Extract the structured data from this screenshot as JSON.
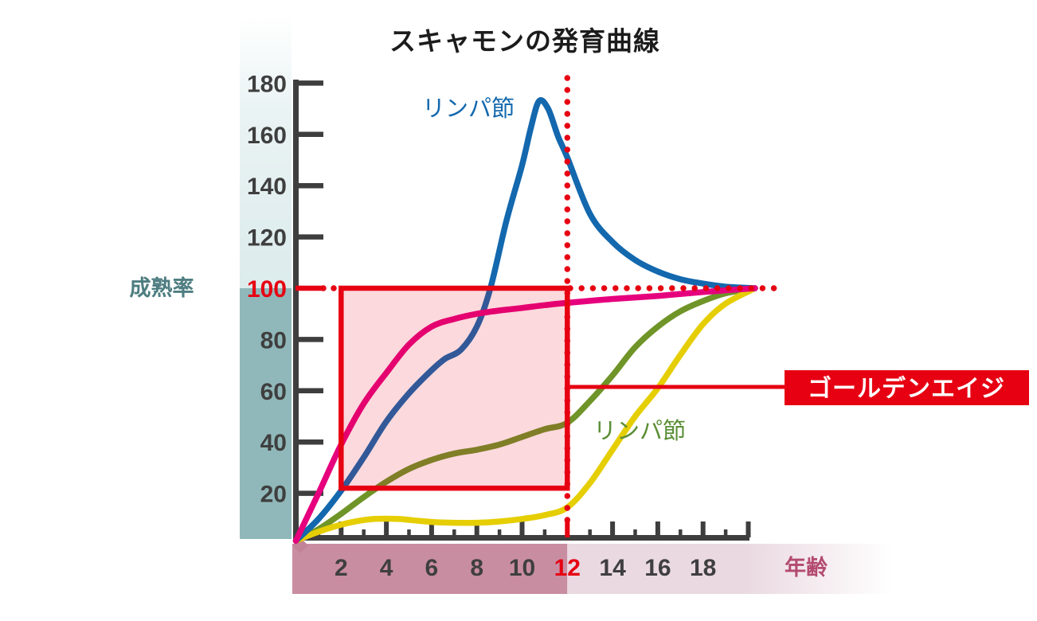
{
  "title": "スキャモンの発育曲線",
  "y_axis": {
    "label": "成熟率",
    "tick_values": [
      180,
      160,
      140,
      120,
      100,
      80,
      60,
      40,
      20
    ],
    "highlight_value": 100,
    "range": [
      0,
      180
    ]
  },
  "x_axis": {
    "label": "年齢",
    "labeled_ticks": [
      2,
      4,
      6,
      8,
      10,
      12,
      14,
      16,
      18
    ],
    "major_ticks": [
      2,
      4,
      6,
      8,
      10,
      12,
      14,
      16,
      18,
      20
    ],
    "minor_ticks": [
      1,
      3,
      5,
      7,
      9,
      11,
      13,
      15,
      17,
      19
    ],
    "highlight_value": 12,
    "range": [
      0,
      20
    ]
  },
  "annotations": {
    "golden_age": {
      "label": "ゴールデンエイジ",
      "y_value": 61.5,
      "from_x": 12
    },
    "highlight_box": {
      "x_from": 2,
      "x_to": 12,
      "y_from": 22,
      "y_to": 100
    },
    "ref_lines": {
      "horizontal_y": 100,
      "vertical_x": 12
    },
    "curve_labels": [
      {
        "text": "リンパ節",
        "series": "blue"
      },
      {
        "text": "リンパ節",
        "series": "olive"
      }
    ]
  },
  "colors": {
    "accent_red": "#e60012",
    "axis": "#3e3e3e",
    "tick_label": "#3f3f3f",
    "blue": "#1368ae",
    "pink": "#e6007e",
    "olive": "#6f9428",
    "yellow": "#e5ce04",
    "teal_bar": "#90b8ba",
    "teal_bar_light": "#dcebec",
    "x_bar_dark": "#c98da2",
    "x_bar_diamond": "#c28398",
    "x_bar_light": "#ead9e1",
    "highlight_fill": "rgba(229,0,25,0.15)",
    "y_label_color": "#4e7d81",
    "x_label_color": "#b34a70",
    "title_color": "#1c1c1c",
    "golden_text": "#ffffff"
  },
  "chart_data": {
    "type": "line",
    "title": "スキャモンの発育曲線",
    "xlabel": "年齢",
    "ylabel": "成熟率",
    "xlim": [
      0,
      20
    ],
    "ylim": [
      0,
      180
    ],
    "grid": false,
    "legend_position": "inline-curve-labels",
    "series": [
      {
        "id": "olive",
        "label": "リンパ節",
        "points": [
          [
            0,
            1.5
          ],
          [
            1,
            6
          ],
          [
            2,
            12
          ],
          [
            3,
            18.5
          ],
          [
            4,
            24.5
          ],
          [
            5,
            29.5
          ],
          [
            6,
            33
          ],
          [
            7,
            35.5
          ],
          [
            8,
            37
          ],
          [
            9,
            39
          ],
          [
            10,
            42
          ],
          [
            11,
            45
          ],
          [
            12,
            47.5
          ],
          [
            13,
            56
          ],
          [
            14,
            66
          ],
          [
            15,
            77
          ],
          [
            16,
            85
          ],
          [
            17,
            91
          ],
          [
            18,
            95
          ],
          [
            19,
            98
          ],
          [
            20.3,
            100
          ]
        ]
      },
      {
        "id": "yellow",
        "label": "",
        "points": [
          [
            0,
            1.5
          ],
          [
            0.7,
            4
          ],
          [
            1.5,
            6.5
          ],
          [
            2.5,
            8.8
          ],
          [
            3.5,
            10
          ],
          [
            4.5,
            10
          ],
          [
            5.5,
            9.2
          ],
          [
            6.5,
            8.6
          ],
          [
            8,
            8.5
          ],
          [
            9,
            9
          ],
          [
            10,
            10
          ],
          [
            11,
            11.5
          ],
          [
            12,
            14.5
          ],
          [
            13,
            24
          ],
          [
            14,
            37
          ],
          [
            15,
            50
          ],
          [
            16,
            61
          ],
          [
            17,
            74
          ],
          [
            18,
            86
          ],
          [
            19,
            94
          ],
          [
            20.3,
            100
          ]
        ]
      },
      {
        "id": "blue",
        "label": "リンパ節",
        "points": [
          [
            0,
            1.5
          ],
          [
            1,
            10
          ],
          [
            2,
            21
          ],
          [
            3,
            34
          ],
          [
            4,
            48
          ],
          [
            5,
            59
          ],
          [
            6,
            68
          ],
          [
            6.6,
            72.5
          ],
          [
            7.3,
            76
          ],
          [
            8,
            85
          ],
          [
            8.6,
            100
          ],
          [
            9.3,
            126
          ],
          [
            10,
            148
          ],
          [
            10.4,
            163
          ],
          [
            10.75,
            173
          ],
          [
            11.15,
            170
          ],
          [
            11.6,
            159
          ],
          [
            12,
            151
          ],
          [
            13,
            129
          ],
          [
            14,
            118
          ],
          [
            15,
            111
          ],
          [
            16,
            106.5
          ],
          [
            17,
            103.5
          ],
          [
            18,
            101.8
          ],
          [
            19,
            100.6
          ],
          [
            20.3,
            100
          ]
        ]
      },
      {
        "id": "pink",
        "label": "",
        "points": [
          [
            0,
            1.5
          ],
          [
            1,
            20
          ],
          [
            2,
            39
          ],
          [
            3,
            55
          ],
          [
            4,
            67
          ],
          [
            5,
            78
          ],
          [
            6,
            85
          ],
          [
            7,
            88
          ],
          [
            8,
            90
          ],
          [
            9,
            91.3
          ],
          [
            10,
            92.3
          ],
          [
            11,
            93.4
          ],
          [
            12,
            94.3
          ],
          [
            14,
            95.8
          ],
          [
            16,
            97
          ],
          [
            18,
            98.5
          ],
          [
            20.3,
            100
          ]
        ]
      }
    ]
  }
}
